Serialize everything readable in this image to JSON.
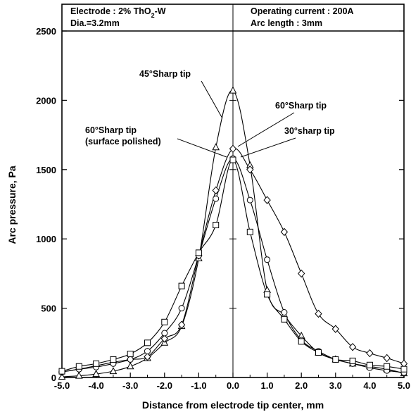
{
  "chart_data": {
    "type": "line",
    "xlabel": "Distance from electrode tip center, mm",
    "ylabel": "Arc pressure, Pa",
    "xlim": [
      -5.0,
      5.0
    ],
    "ylim": [
      0,
      2500
    ],
    "x_ticks": [
      "-5.0",
      "-4.0",
      "-3.0",
      "-2.0",
      "-1.0",
      "0.0",
      "1.0",
      "2.0",
      "3.0",
      "4.0",
      "5.0"
    ],
    "y_ticks": [
      "0",
      "500",
      "1000",
      "1500",
      "2000",
      "2500"
    ],
    "grid": false,
    "header": {
      "left_line1_prefix": "Electrode : 2% ThO",
      "left_line1_sub": "2",
      "left_line1_suffix": "-W",
      "left_line2": "Dia.=3.2mm",
      "right_line1": "Operating current : 200A",
      "right_line2": "Arc length : 3mm"
    },
    "annotations": [
      {
        "text": "45°Sharp tip"
      },
      {
        "text": "60°Sharp tip"
      },
      {
        "text": "60°Sharp tip"
      },
      {
        "text": "(surface polished)"
      },
      {
        "text": "30°sharp tip"
      }
    ],
    "series": [
      {
        "marker": "triangle",
        "x": [
          -5.0,
          -4.5,
          -4.0,
          -3.5,
          -3.0,
          -2.5,
          -2.0,
          -1.5,
          -1.0,
          -0.5,
          0.0,
          0.5,
          1.0,
          1.5,
          2.0,
          2.5,
          3.0,
          3.5,
          4.0,
          4.5,
          5.0
        ],
        "y": [
          5,
          12,
          25,
          45,
          80,
          140,
          250,
          370,
          860,
          1660,
          2070,
          1530,
          630,
          450,
          300,
          180,
          130,
          100,
          80,
          60,
          30
        ]
      },
      {
        "marker": "diamond",
        "x": [
          -5.0,
          -4.5,
          -4.0,
          -3.5,
          -3.0,
          -2.5,
          -2.0,
          -1.5,
          -1.0,
          -0.5,
          0.0,
          0.5,
          1.0,
          1.5,
          2.0,
          2.5,
          3.0,
          3.5,
          4.0,
          4.5,
          5.0
        ],
        "y": [
          40,
          60,
          85,
          110,
          130,
          150,
          280,
          380,
          880,
          1350,
          1650,
          1500,
          1280,
          1050,
          750,
          460,
          350,
          220,
          175,
          140,
          100
        ]
      },
      {
        "marker": "circle",
        "x": [
          -5.0,
          -4.5,
          -4.0,
          -3.5,
          -3.0,
          -2.5,
          -2.0,
          -1.5,
          -1.0,
          -0.5,
          0.0,
          0.5,
          1.0,
          1.5,
          2.0,
          2.5,
          3.0,
          3.5,
          4.0,
          4.5,
          5.0
        ],
        "y": [
          40,
          60,
          75,
          100,
          130,
          190,
          320,
          500,
          880,
          1290,
          1580,
          1280,
          850,
          470,
          270,
          190,
          130,
          100,
          70,
          50,
          35
        ]
      },
      {
        "marker": "square",
        "x": [
          -5.0,
          -4.5,
          -4.0,
          -3.5,
          -3.0,
          -2.5,
          -2.0,
          -1.5,
          -1.0,
          -0.5,
          0.0,
          0.5,
          1.0,
          1.5,
          2.0,
          2.5,
          3.0,
          3.5,
          4.0,
          4.5,
          5.0
        ],
        "y": [
          45,
          80,
          100,
          130,
          170,
          250,
          400,
          660,
          900,
          1100,
          1570,
          1050,
          600,
          420,
          260,
          180,
          130,
          120,
          90,
          80,
          60
        ]
      }
    ]
  }
}
